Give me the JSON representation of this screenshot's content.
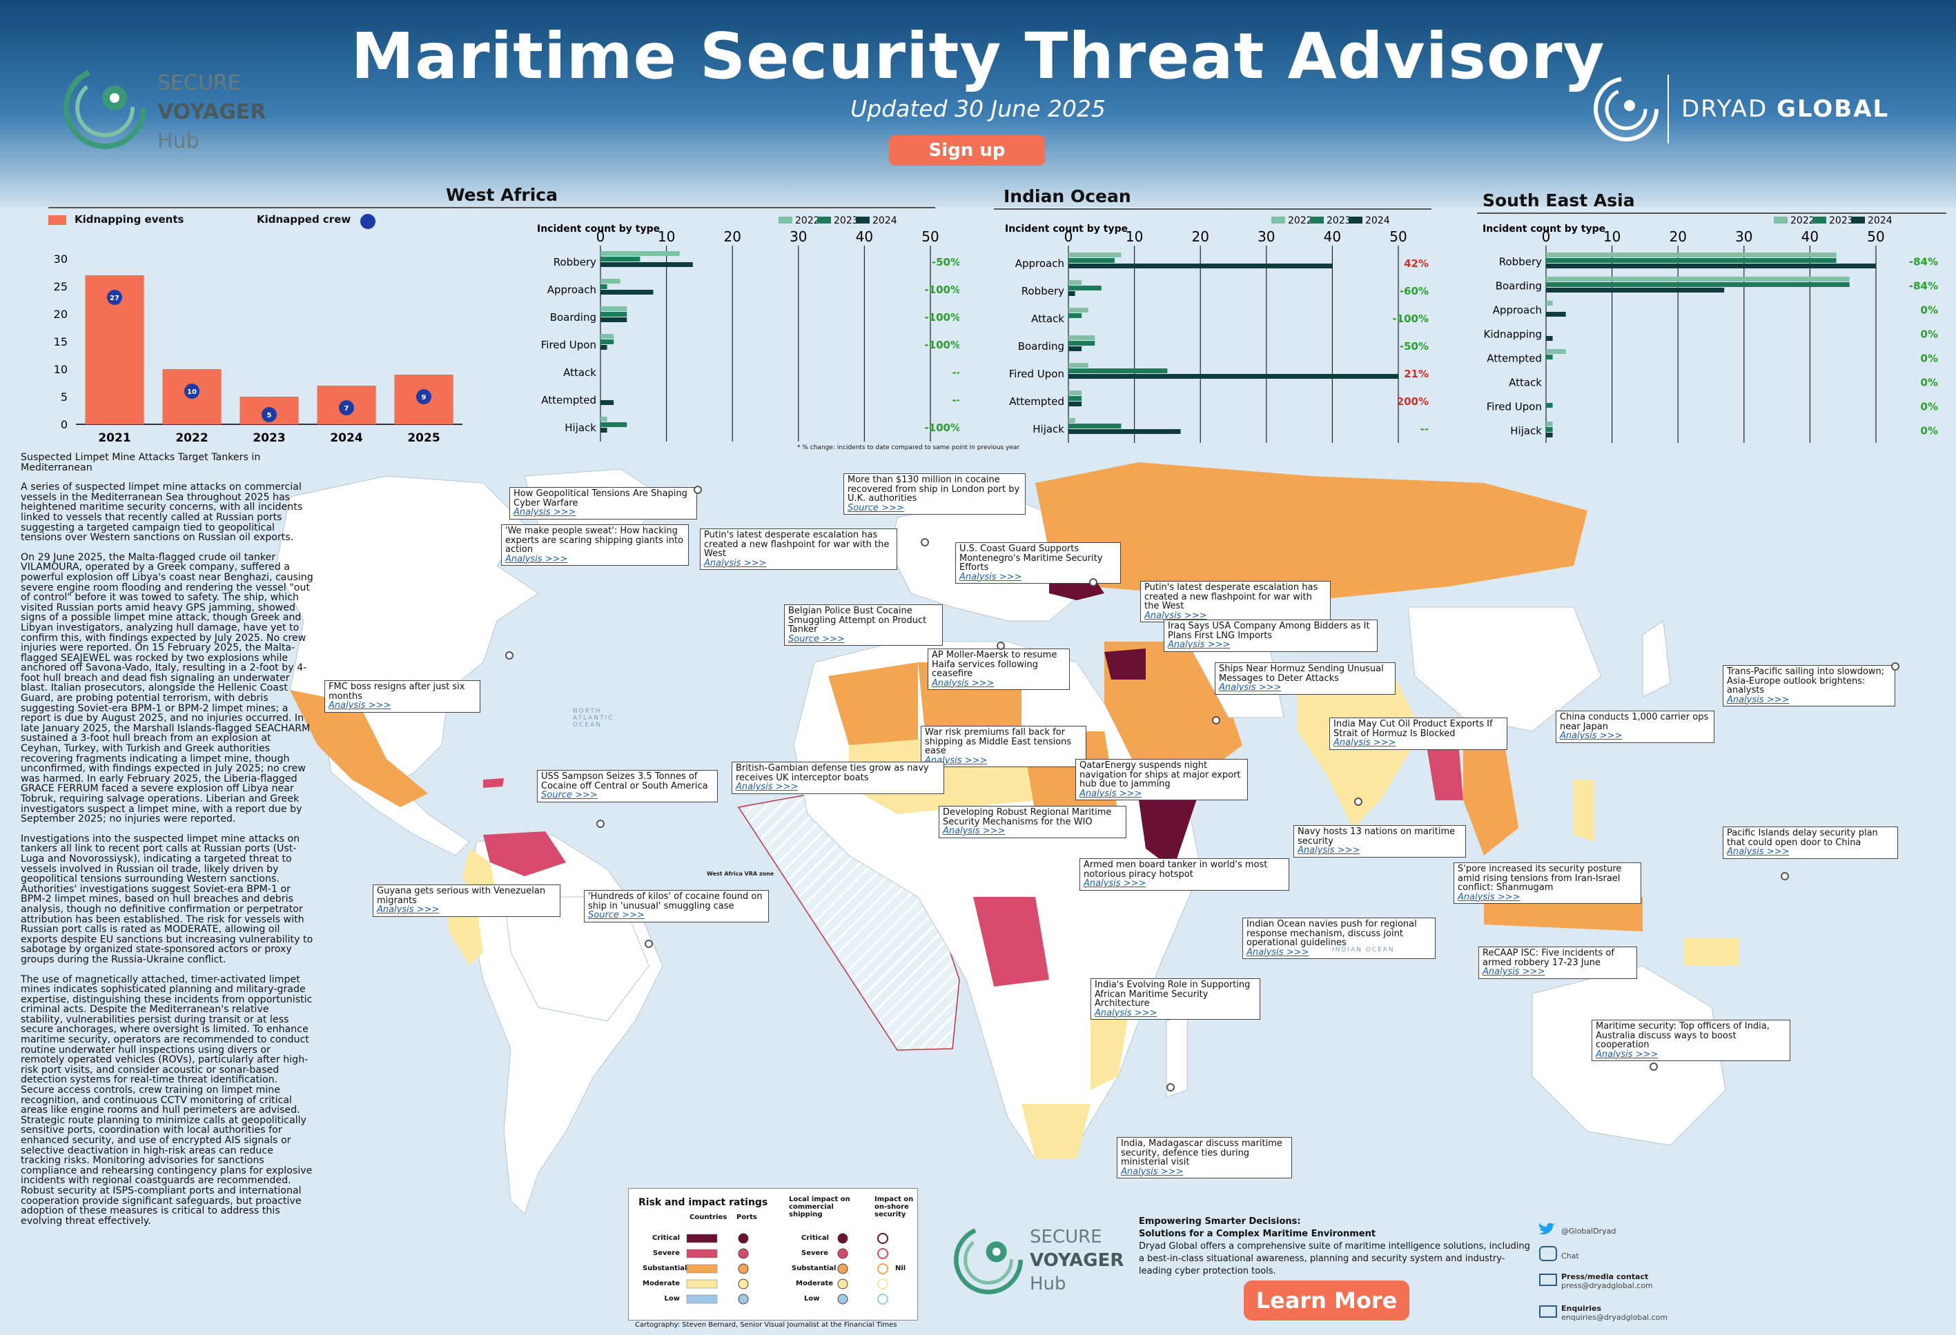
{
  "header": {
    "title": "Maritime Security Threat Advisory",
    "subtitle": "Updated 30 June 2025",
    "signup_label": "Sign up",
    "logo_left": {
      "line1": "SECURE",
      "line2": "VOYAGER",
      "line3": "Hub"
    },
    "logo_right": {
      "light": "DRYAD",
      "bold": "GLOBAL"
    }
  },
  "colors": {
    "accent": "#f37055",
    "y2022": "#7fc1a4",
    "y2023": "#1f7a59",
    "y2024": "#0e3c3a",
    "critical": "#6b1035",
    "severe": "#d84a6b",
    "substantial": "#f4a552",
    "moderate": "#fbe7a0",
    "low": "#9ec8e8"
  },
  "west_africa": {
    "title": "West Africa",
    "kidnap_legend": "Kidnapping events",
    "crew_legend": "Kidnapped crew",
    "chart_data": {
      "type": "bar",
      "categories": [
        "2021",
        "2022",
        "2023",
        "2024",
        "2025"
      ],
      "series": [
        {
          "name": "Kidnapping events",
          "values": [
            27,
            10,
            5,
            7,
            9
          ]
        },
        {
          "name": "Kidnapped crew",
          "values": [
            27,
            10,
            5,
            7,
            9
          ]
        }
      ],
      "ylim": [
        0,
        30
      ],
      "yticks": [
        "0",
        "5",
        "10",
        "15",
        "20",
        "25",
        "30"
      ]
    },
    "incident_label": "Incident count by type",
    "xticks": [
      "0",
      "10",
      "20",
      "30",
      "40",
      "50"
    ],
    "legend_years": [
      "2022",
      "2023",
      "2024"
    ],
    "incidents": {
      "type": "bar",
      "categories": [
        "Robbery",
        "Approach",
        "Boarding",
        "Fired Upon",
        "Attack",
        "Attempted",
        "Hijack"
      ],
      "series": [
        {
          "name": "2022",
          "values": [
            12,
            3,
            4,
            2,
            0,
            0,
            1
          ]
        },
        {
          "name": "2023",
          "values": [
            6,
            1,
            4,
            2,
            0,
            0,
            4
          ]
        },
        {
          "name": "2024",
          "values": [
            14,
            8,
            4,
            1,
            0,
            2,
            1
          ]
        }
      ],
      "xlim": [
        0,
        50
      ],
      "changes": [
        "-50%",
        "-100%",
        "-100%",
        "-100%",
        "--",
        "--",
        "-100%"
      ]
    }
  },
  "indian_ocean": {
    "title": "Indian Ocean",
    "incident_label": "Incident count by type",
    "xticks": [
      "0",
      "10",
      "20",
      "30",
      "40",
      "50"
    ],
    "legend_years": [
      "2022",
      "2023",
      "2024"
    ],
    "incidents": {
      "type": "bar",
      "categories": [
        "Approach",
        "Robbery",
        "Attack",
        "Boarding",
        "Fired Upon",
        "Attempted",
        "Hijack"
      ],
      "series": [
        {
          "name": "2022",
          "values": [
            8,
            2,
            3,
            4,
            3,
            2,
            1
          ]
        },
        {
          "name": "2023",
          "values": [
            7,
            5,
            2,
            4,
            15,
            2,
            8
          ]
        },
        {
          "name": "2024",
          "values": [
            40,
            1,
            0,
            2,
            50,
            2,
            17
          ]
        }
      ],
      "xlim": [
        0,
        50
      ],
      "changes": [
        "42%",
        "-60%",
        "-100%",
        "-50%",
        "21%",
        "200%",
        "--"
      ]
    },
    "footnote": "* % change: incidents to date compared to same point in previous year"
  },
  "south_east_asia": {
    "title": "South East Asia",
    "incident_label": "Incident count by type",
    "xticks": [
      "0",
      "10",
      "20",
      "30",
      "40",
      "50"
    ],
    "legend_years": [
      "2022",
      "2023",
      "2024"
    ],
    "incidents": {
      "type": "bar",
      "categories": [
        "Robbery",
        "Boarding",
        "Approach",
        "Kidnapping",
        "Attempted",
        "Attack",
        "Fired Upon",
        "Hijack"
      ],
      "series": [
        {
          "name": "2022",
          "values": [
            44,
            46,
            1,
            0,
            3,
            0,
            0,
            1
          ]
        },
        {
          "name": "2023",
          "values": [
            44,
            46,
            0,
            0,
            1,
            0,
            1,
            1
          ]
        },
        {
          "name": "2024",
          "values": [
            50,
            27,
            3,
            1,
            0,
            0,
            0,
            1
          ]
        }
      ],
      "xlim": [
        0,
        50
      ],
      "changes": [
        "-84%",
        "-84%",
        "0%",
        "0%",
        "0%",
        "0%",
        "0%",
        "0%"
      ]
    }
  },
  "article": {
    "headline": "Suspected Limpet Mine Attacks Target Tankers in Mediterranean",
    "paragraphs": [
      "A series of suspected limpet mine attacks on commercial vessels in the Mediterranean Sea throughout 2025 has heightened maritime security concerns, with all incidents linked to vessels that recently called at Russian ports suggesting a targeted campaign tied to geopolitical tensions over Western sanctions on Russian oil exports.",
      "On 29 June 2025, the Malta-flagged crude oil tanker VILAMOURA, operated by a Greek company, suffered a powerful explosion off Libya's coast near Benghazi, causing severe engine room flooding and rendering the vessel \"out of control\" before it was towed to safety. The ship, which visited Russian ports amid heavy GPS jamming, showed signs of a possible limpet mine attack, though Greek and Libyan investigators, analyzing hull damage, have yet to confirm this, with findings expected by July 2025. No crew injuries were reported. On 15 February 2025, the Malta-flagged SEAJEWEL was rocked by two explosions while anchored off Savona-Vado, Italy, resulting in a 2-foot by 4-foot hull breach and dead fish signaling an underwater blast. Italian prosecutors, alongside the Hellenic Coast Guard, are probing potential terrorism, with debris suggesting Soviet-era BPM-1 or BPM-2 limpet mines; a report is due by August 2025, and no injuries occurred. In late January 2025, the Marshall Islands-flagged SEACHARM sustained a 3-foot hull breach from an explosion at Ceyhan, Turkey, with Turkish and Greek authorities recovering fragments indicating a limpet mine, though unconfirmed, with findings expected in July 2025; no crew was harmed. In early February 2025, the Liberia-flagged GRACE FERRUM faced a severe explosion off Libya near Tobruk, requiring salvage operations. Liberian and Greek investigators suspect a limpet mine, with a report due by September 2025; no injuries were reported.",
      "Investigations into the suspected limpet mine attacks on tankers all link to recent port calls at Russian ports (Ust-Luga and Novorossiysk), indicating a targeted threat to vessels involved in Russian oil trade, likely driven by geopolitical tensions surrounding Western sanctions.\nAuthorities' investigations suggest Soviet-era BPM-1 or BPM-2 limpet mines, based on hull breaches and debris analysis, though no definitive confirmation or perpetrator attribution has been established. The risk for vessels with Russian port calls is rated as MODERATE, allowing oil exports despite EU sanctions but increasing vulnerability to sabotage by organized state-sponsored actors or proxy groups during the Russia-Ukraine conflict.",
      "The use of magnetically attached, timer-activated limpet mines indicates sophisticated planning and military-grade expertise, distinguishing these incidents from opportunistic criminal acts. Despite the Mediterranean's relative stability, vulnerabilities persist during transit or at less secure anchorages, where oversight is limited. To enhance maritime security, operators are recommended to conduct routine underwater hull inspections using divers or remotely operated vehicles (ROVs), particularly after high-risk port visits, and consider acoustic or sonar-based detection systems for real-time threat identification. Secure access controls, crew training on limpet mine recognition, and continuous CCTV monitoring of critical areas like engine rooms and hull perimeters are advised.\nStrategic route planning to minimize calls at geopolitically sensitive ports, coordination with local authorities for enhanced security, and use of encrypted AIS signals or selective deactivation in high-risk areas can reduce tracking risks. Monitoring advisories for sanctions compliance and rehearsing contingency plans for explosive incidents with regional coastguards are recommended. Robust security at ISPS-compliant ports and international cooperation provide significant safeguards, but proactive adoption of these measures is critical to address this evolving threat effectively."
    ]
  },
  "callouts": [
    {
      "text": "How Geopolitical Tensions Are Shaping Cyber Warfare",
      "link": "Analysis >>>"
    },
    {
      "text": "'We make people sweat': How hacking experts are scaring shipping giants into action",
      "link": "Analysis >>>"
    },
    {
      "text": "More than $130 million in cocaine recovered from ship in London port by U.K. authorities",
      "link": "Source >>>"
    },
    {
      "text": "Putin's latest desperate escalation has created a new flashpoint for war with the West",
      "link": "Analysis >>>"
    },
    {
      "text": "U.S. Coast Guard Supports Montenegro's Maritime Security Efforts",
      "link": "Analysis >>>"
    },
    {
      "text": "Putin's latest desperate escalation has created a new flashpoint for war with the West",
      "link": "Analysis >>>"
    },
    {
      "text": "Belgian Police Bust Cocaine Smuggling Attempt on Product Tanker",
      "link": "Source >>>"
    },
    {
      "text": "Iraq Says USA Company Among Bidders as It Plans First LNG Imports",
      "link": "Analysis >>>"
    },
    {
      "text": "AP Moller-Maersk to resume Haifa services following ceasefire",
      "link": "Analysis >>>"
    },
    {
      "text": "Ships Near Hormuz Sending Unusual Messages to Deter Attacks",
      "link": "Analysis >>>"
    },
    {
      "text": "FMC boss resigns after just six months",
      "link": "Analysis >>>"
    },
    {
      "text": "War risk premiums fall back for shipping as Middle East tensions ease",
      "link": "Analysis >>>"
    },
    {
      "text": "India May Cut Oil Product Exports If Strait of Hormuz Is Blocked",
      "link": "Analysis >>>"
    },
    {
      "text": "USS Sampson Seizes 3.5 Tonnes of Cocaine off Central or South America",
      "link": "Source >>>"
    },
    {
      "text": "British-Gambian defense ties grow as navy receives UK interceptor boats",
      "link": "Analysis >>>"
    },
    {
      "text": "QatarEnergy suspends night navigation for ships at major export hub due to jamming",
      "link": "Analysis >>>"
    },
    {
      "text": "Developing Robust Regional Maritime Security Mechanisms for the WIO",
      "link": "Analysis >>>"
    },
    {
      "text": "Navy hosts 13 nations on maritime security",
      "link": "Analysis >>>"
    },
    {
      "text": "Armed men board tanker in world's most notorious piracy hotspot",
      "link": "Analysis >>>"
    },
    {
      "text": "Guyana gets serious with Venezuelan migrants",
      "link": "Analysis >>>"
    },
    {
      "text": "'Hundreds of kilos' of cocaine found on ship in 'unusual' smuggling case",
      "link": "Source >>>"
    },
    {
      "text": "S'pore increased its security posture amid rising tensions from Iran-Israel conflict: Shanmugam",
      "link": "Analysis >>>"
    },
    {
      "text": "Indian Ocean navies push for regional response mechanism, discuss joint operational guidelines",
      "link": "Analysis >>>"
    },
    {
      "text": "ReCAAP ISC: Five incidents of armed robbery 17-23 June",
      "link": "Analysis >>>"
    },
    {
      "text": "India's Evolving Role in Supporting African Maritime Security Architecture",
      "link": "Analysis >>>"
    },
    {
      "text": "Maritime security: Top officers of India, Australia discuss ways to boost cooperation",
      "link": "Analysis >>>"
    },
    {
      "text": "India, Madagascar discuss maritime security, defence ties during ministerial visit",
      "link": "Analysis >>>"
    },
    {
      "text": "China conducts 1,000 carrier ops near Japan",
      "link": "Analysis >>>"
    },
    {
      "text": "Trans-Pacific sailing into slowdown; Asia-Europe outlook brightens: analysts",
      "link": "Analysis >>>"
    },
    {
      "text": "Pacific Islands delay security plan that could open door to China",
      "link": "Analysis >>>"
    }
  ],
  "map_labels": {
    "vra": "West Africa VRA zone",
    "atlantic": "NORTH ATLANTIC OCEAN",
    "indian": "INDIAN OCEAN"
  },
  "legend": {
    "title": "Risk and impact ratings",
    "col_countries": "Countries",
    "col_ports": "Ports",
    "col_local": "Local impact on commercial shipping",
    "col_onshore": "Impact on on-shore security",
    "levels": [
      "Critical",
      "Severe",
      "Substantial",
      "Moderate",
      "Low"
    ],
    "nil": "Nil"
  },
  "credit": "Cartography: Steven Bernard, Senior Visual Journalist at the Financial Times",
  "footer": {
    "empower_title": "Empowering Smarter Decisions:",
    "empower_sub": "Solutions for a Complex Maritime Environment",
    "empower_body": "Dryad Global offers a comprehensive suite of maritime intelligence solutions, including a best-in-class situational awareness, planning and security system and industry-leading cyber protection tools.",
    "learn_more": "Learn More",
    "twitter": "@GlobalDryad",
    "chat": "Chat",
    "press_title": "Press/media contact",
    "press_email": "press@dryadglobal.com",
    "enq_title": "Enquiries",
    "enq_email": "enquiries@dryadglobal.com"
  }
}
